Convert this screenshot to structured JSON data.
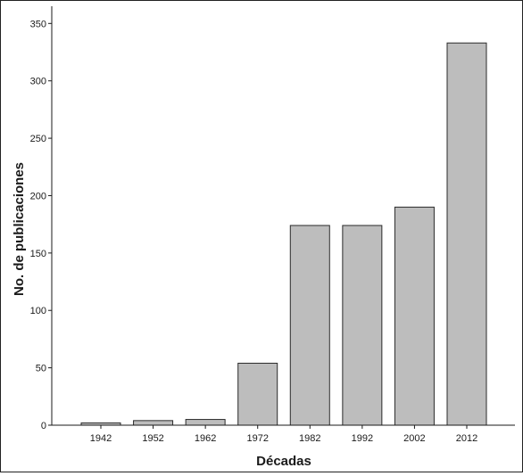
{
  "chart_data": {
    "type": "bar",
    "title": "",
    "xlabel": "Décadas",
    "ylabel": "No. de publicaciones",
    "categories": [
      "1942",
      "1952",
      "1962",
      "1972",
      "1982",
      "1992",
      "2002",
      "2012"
    ],
    "values": [
      2,
      4,
      5,
      54,
      174,
      174,
      190,
      333
    ],
    "ylim": [
      0,
      365
    ],
    "yticks": [
      0,
      50,
      100,
      150,
      200,
      250,
      300,
      350
    ],
    "grid": false,
    "legend": "none",
    "colors": {
      "bar_fill": "#bdbdbd",
      "bar_stroke": "#2a2a2a",
      "axis": "#1a1a1a"
    }
  }
}
